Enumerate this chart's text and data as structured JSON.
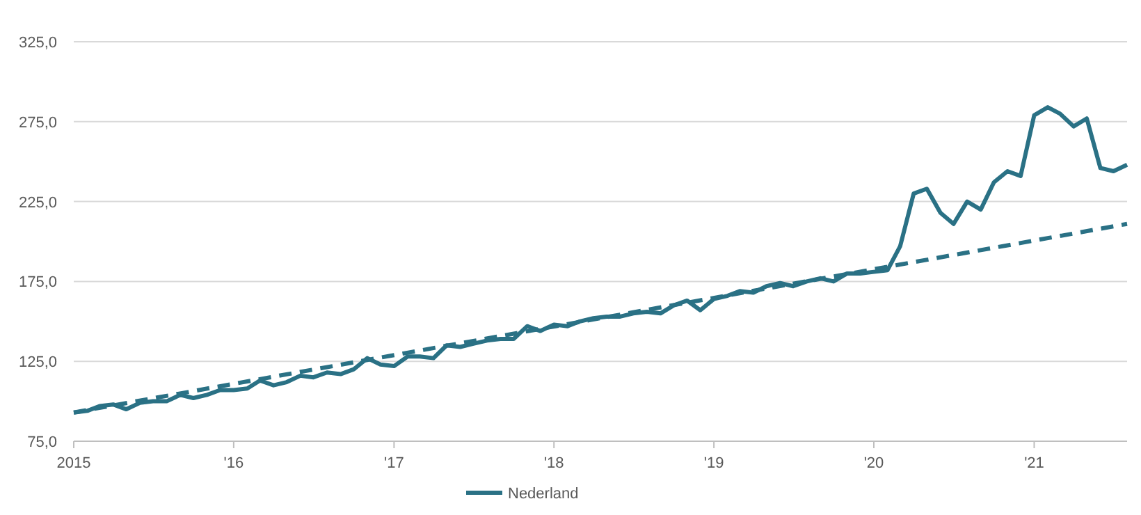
{
  "chart_data": {
    "type": "line",
    "ylim": [
      75,
      325
    ],
    "yticks": [
      {
        "value": 75,
        "label": "75,0"
      },
      {
        "value": 125,
        "label": "125,0"
      },
      {
        "value": 175,
        "label": "175,0"
      },
      {
        "value": 225,
        "label": "225,0"
      },
      {
        "value": 275,
        "label": "275,0"
      },
      {
        "value": 325,
        "label": "325,0"
      }
    ],
    "xlim": [
      "2015-01",
      "2021-08"
    ],
    "xticks": [
      {
        "value": "2015-01",
        "label": "2015"
      },
      {
        "value": "2016-01",
        "label": "'16"
      },
      {
        "value": "2017-01",
        "label": "'17"
      },
      {
        "value": "2018-01",
        "label": "'18"
      },
      {
        "value": "2019-01",
        "label": "'19"
      },
      {
        "value": "2020-01",
        "label": "'20"
      },
      {
        "value": "2021-01",
        "label": "'21"
      }
    ],
    "grid": "y",
    "legend": "bottom",
    "series": [
      {
        "name": "Nederland",
        "color": "#2a7185",
        "line_style": "solid",
        "x": [
          "2015-01",
          "2015-02",
          "2015-03",
          "2015-04",
          "2015-05",
          "2015-06",
          "2015-07",
          "2015-08",
          "2015-09",
          "2015-10",
          "2015-11",
          "2015-12",
          "2016-01",
          "2016-02",
          "2016-03",
          "2016-04",
          "2016-05",
          "2016-06",
          "2016-07",
          "2016-08",
          "2016-09",
          "2016-10",
          "2016-11",
          "2016-12",
          "2017-01",
          "2017-02",
          "2017-03",
          "2017-04",
          "2017-05",
          "2017-06",
          "2017-07",
          "2017-08",
          "2017-09",
          "2017-10",
          "2017-11",
          "2017-12",
          "2018-01",
          "2018-02",
          "2018-03",
          "2018-04",
          "2018-05",
          "2018-06",
          "2018-07",
          "2018-08",
          "2018-09",
          "2018-10",
          "2018-11",
          "2018-12",
          "2019-01",
          "2019-02",
          "2019-03",
          "2019-04",
          "2019-05",
          "2019-06",
          "2019-07",
          "2019-08",
          "2019-09",
          "2019-10",
          "2019-11",
          "2019-12",
          "2020-01",
          "2020-02",
          "2020-03",
          "2020-04",
          "2020-05",
          "2020-06",
          "2020-07",
          "2020-08",
          "2020-09",
          "2020-10",
          "2020-11",
          "2020-12",
          "2021-01",
          "2021-02",
          "2021-03",
          "2021-04",
          "2021-05",
          "2021-06",
          "2021-07",
          "2021-08"
        ],
        "values": [
          93,
          94,
          97,
          98,
          95,
          99,
          100,
          100,
          104,
          102,
          104,
          107,
          107,
          108,
          113,
          110,
          112,
          116,
          115,
          118,
          117,
          120,
          127,
          123,
          122,
          128,
          128,
          127,
          135,
          134,
          136,
          138,
          139,
          139,
          147,
          144,
          148,
          147,
          150,
          152,
          153,
          153,
          155,
          156,
          155,
          160,
          163,
          157,
          164,
          166,
          169,
          168,
          172,
          174,
          172,
          175,
          177,
          175,
          180,
          180,
          181,
          182,
          197,
          230,
          233,
          218,
          211,
          225,
          220,
          237,
          244,
          241,
          279,
          284,
          280,
          272,
          277,
          246,
          244,
          248
        ]
      },
      {
        "color": "#2a7185",
        "line_style": "dashed",
        "x": [
          "2015-01",
          "2021-08"
        ],
        "values": [
          93,
          211
        ]
      }
    ]
  }
}
